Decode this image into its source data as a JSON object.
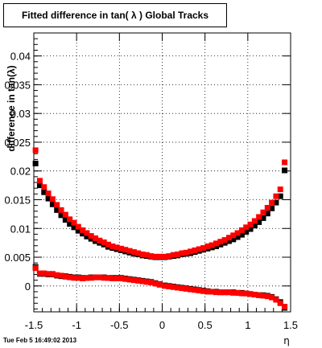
{
  "title": "Fitted difference in tan( λ )  Global Tracks",
  "timestamp": "Tue Feb  5 16:49:02 2013",
  "chart_data": {
    "type": "scatter",
    "title": "Fitted difference in tan( λ )  Global Tracks",
    "xlabel": "η",
    "ylabel": "difference in tan(λ)",
    "xlim": [
      -1.5,
      1.5
    ],
    "ylim": [
      -0.0045,
      0.044
    ],
    "grid": true,
    "x_ticks": [
      "-1.5",
      "-1",
      "-0.5",
      "0",
      "0.5",
      "1",
      "1.5"
    ],
    "y_ticks": [
      "0",
      "0.005",
      "0.01",
      "0.015",
      "0.02",
      "0.025",
      "0.03",
      "0.035",
      "0.04"
    ],
    "series_colors": [
      "#000000",
      "#ff0000"
    ],
    "series": [
      {
        "color": "#000000",
        "points": [
          [
            -1.48,
            0.0213
          ],
          [
            -1.43,
            0.0175
          ],
          [
            -1.38,
            0.0163
          ],
          [
            -1.33,
            0.0152
          ],
          [
            -1.28,
            0.0142
          ],
          [
            -1.23,
            0.0132
          ],
          [
            -1.18,
            0.0123
          ],
          [
            -1.13,
            0.0115
          ],
          [
            -1.08,
            0.0108
          ],
          [
            -1.03,
            0.0102
          ],
          [
            -0.98,
            0.0096
          ],
          [
            -0.93,
            0.0091
          ],
          [
            -0.88,
            0.0086
          ],
          [
            -0.83,
            0.0082
          ],
          [
            -0.78,
            0.0078
          ],
          [
            -0.73,
            0.0075
          ],
          [
            -0.68,
            0.0072
          ],
          [
            -0.63,
            0.0068
          ],
          [
            -0.58,
            0.0066
          ],
          [
            -0.53,
            0.0064
          ],
          [
            -0.48,
            0.0062
          ],
          [
            -0.43,
            0.006
          ],
          [
            -0.38,
            0.0058
          ],
          [
            -0.33,
            0.0056
          ],
          [
            -0.28,
            0.0055
          ],
          [
            -0.23,
            0.0053
          ],
          [
            -0.18,
            0.0052
          ],
          [
            -0.13,
            0.0051
          ],
          [
            -0.08,
            0.005
          ],
          [
            -0.03,
            0.005
          ],
          [
            0.03,
            0.005
          ],
          [
            0.08,
            0.0051
          ],
          [
            0.13,
            0.0052
          ],
          [
            0.18,
            0.0053
          ],
          [
            0.23,
            0.0055
          ],
          [
            0.28,
            0.0056
          ],
          [
            0.33,
            0.0057
          ],
          [
            0.38,
            0.0059
          ],
          [
            0.43,
            0.0061
          ],
          [
            0.48,
            0.0063
          ],
          [
            0.53,
            0.0065
          ],
          [
            0.58,
            0.0067
          ],
          [
            0.63,
            0.0069
          ],
          [
            0.68,
            0.0072
          ],
          [
            0.73,
            0.0075
          ],
          [
            0.78,
            0.0078
          ],
          [
            0.83,
            0.0081
          ],
          [
            0.88,
            0.0085
          ],
          [
            0.93,
            0.0089
          ],
          [
            0.98,
            0.0094
          ],
          [
            1.03,
            0.0099
          ],
          [
            1.08,
            0.0105
          ],
          [
            1.13,
            0.0111
          ],
          [
            1.18,
            0.0118
          ],
          [
            1.23,
            0.0126
          ],
          [
            1.28,
            0.0135
          ],
          [
            1.33,
            0.0145
          ],
          [
            1.38,
            0.0156
          ],
          [
            1.43,
            0.0201
          ],
          [
            -1.48,
            0.0033
          ],
          [
            -1.43,
            0.0021
          ],
          [
            -1.38,
            0.0021
          ],
          [
            -1.33,
            0.002
          ],
          [
            -1.28,
            0.002
          ],
          [
            -1.23,
            0.0018
          ],
          [
            -1.18,
            0.0017
          ],
          [
            -1.13,
            0.0017
          ],
          [
            -1.08,
            0.0016
          ],
          [
            -1.03,
            0.0015
          ],
          [
            -0.98,
            0.0015
          ],
          [
            -0.93,
            0.0014
          ],
          [
            -0.88,
            0.0014
          ],
          [
            -0.83,
            0.0015
          ],
          [
            -0.78,
            0.0015
          ],
          [
            -0.73,
            0.0015
          ],
          [
            -0.68,
            0.0015
          ],
          [
            -0.63,
            0.0014
          ],
          [
            -0.58,
            0.0014
          ],
          [
            -0.53,
            0.0014
          ],
          [
            -0.48,
            0.0014
          ],
          [
            -0.43,
            0.0013
          ],
          [
            -0.38,
            0.0012
          ],
          [
            -0.33,
            0.0011
          ],
          [
            -0.28,
            0.001
          ],
          [
            -0.23,
            0.0009
          ],
          [
            -0.18,
            0.0008
          ],
          [
            -0.13,
            0.0007
          ],
          [
            -0.08,
            0.0005
          ],
          [
            -0.03,
            0.0003
          ],
          [
            0.03,
            0.0001
          ],
          [
            0.08,
            0.0
          ],
          [
            0.13,
            -0.0001
          ],
          [
            0.18,
            -0.0002
          ],
          [
            0.23,
            -0.0003
          ],
          [
            0.28,
            -0.0004
          ],
          [
            0.33,
            -0.0005
          ],
          [
            0.38,
            -0.0006
          ],
          [
            0.43,
            -0.0007
          ],
          [
            0.48,
            -0.0008
          ],
          [
            0.53,
            -0.0009
          ],
          [
            0.58,
            -0.001
          ],
          [
            0.63,
            -0.001
          ],
          [
            0.68,
            -0.0011
          ],
          [
            0.73,
            -0.0011
          ],
          [
            0.78,
            -0.0011
          ],
          [
            0.83,
            -0.0011
          ],
          [
            0.88,
            -0.0012
          ],
          [
            0.93,
            -0.0012
          ],
          [
            0.98,
            -0.0013
          ],
          [
            1.03,
            -0.0014
          ],
          [
            1.08,
            -0.0015
          ],
          [
            1.13,
            -0.0016
          ],
          [
            1.18,
            -0.0016
          ],
          [
            1.23,
            -0.0017
          ],
          [
            1.28,
            -0.0019
          ],
          [
            1.33,
            -0.0023
          ],
          [
            1.38,
            -0.0028
          ],
          [
            1.43,
            -0.0038
          ]
        ]
      },
      {
        "color": "#ff0000",
        "points": [
          [
            -1.48,
            0.0236
          ],
          [
            -1.43,
            0.0183
          ],
          [
            -1.38,
            0.0172
          ],
          [
            -1.33,
            0.0161
          ],
          [
            -1.28,
            0.0151
          ],
          [
            -1.23,
            0.0141
          ],
          [
            -1.18,
            0.0132
          ],
          [
            -1.13,
            0.0124
          ],
          [
            -1.08,
            0.0116
          ],
          [
            -1.03,
            0.011
          ],
          [
            -0.98,
            0.0103
          ],
          [
            -0.93,
            0.0097
          ],
          [
            -0.88,
            0.0092
          ],
          [
            -0.83,
            0.0087
          ],
          [
            -0.78,
            0.0083
          ],
          [
            -0.73,
            0.0079
          ],
          [
            -0.68,
            0.0076
          ],
          [
            -0.63,
            0.0072
          ],
          [
            -0.58,
            0.0069
          ],
          [
            -0.53,
            0.0067
          ],
          [
            -0.48,
            0.0065
          ],
          [
            -0.43,
            0.0063
          ],
          [
            -0.38,
            0.0061
          ],
          [
            -0.33,
            0.0059
          ],
          [
            -0.28,
            0.0057
          ],
          [
            -0.23,
            0.0055
          ],
          [
            -0.18,
            0.0054
          ],
          [
            -0.13,
            0.0052
          ],
          [
            -0.08,
            0.0051
          ],
          [
            -0.03,
            0.0051
          ],
          [
            0.03,
            0.0051
          ],
          [
            0.08,
            0.0052
          ],
          [
            0.13,
            0.0054
          ],
          [
            0.18,
            0.0055
          ],
          [
            0.23,
            0.0057
          ],
          [
            0.28,
            0.0058
          ],
          [
            0.33,
            0.006
          ],
          [
            0.38,
            0.0062
          ],
          [
            0.43,
            0.0064
          ],
          [
            0.48,
            0.0066
          ],
          [
            0.53,
            0.0069
          ],
          [
            0.58,
            0.0071
          ],
          [
            0.63,
            0.0074
          ],
          [
            0.68,
            0.0077
          ],
          [
            0.73,
            0.008
          ],
          [
            0.78,
            0.0084
          ],
          [
            0.83,
            0.0088
          ],
          [
            0.88,
            0.0092
          ],
          [
            0.93,
            0.0097
          ],
          [
            0.98,
            0.0102
          ],
          [
            1.03,
            0.0107
          ],
          [
            1.08,
            0.0113
          ],
          [
            1.13,
            0.012
          ],
          [
            1.18,
            0.0128
          ],
          [
            1.23,
            0.0136
          ],
          [
            1.28,
            0.0145
          ],
          [
            1.33,
            0.0156
          ],
          [
            1.38,
            0.0168
          ],
          [
            1.43,
            0.0215
          ],
          [
            -1.48,
            0.0031
          ],
          [
            -1.43,
            0.0022
          ],
          [
            -1.38,
            0.0022
          ],
          [
            -1.33,
            0.0021
          ],
          [
            -1.28,
            0.0021
          ],
          [
            -1.23,
            0.0019
          ],
          [
            -1.18,
            0.0018
          ],
          [
            -1.13,
            0.0016
          ],
          [
            -1.08,
            0.0015
          ],
          [
            -1.03,
            0.0014
          ],
          [
            -0.98,
            0.0014
          ],
          [
            -0.93,
            0.0013
          ],
          [
            -0.88,
            0.0014
          ],
          [
            -0.83,
            0.0014
          ],
          [
            -0.78,
            0.0015
          ],
          [
            -0.73,
            0.0015
          ],
          [
            -0.68,
            0.0014
          ],
          [
            -0.63,
            0.0014
          ],
          [
            -0.58,
            0.0013
          ],
          [
            -0.53,
            0.0013
          ],
          [
            -0.48,
            0.0013
          ],
          [
            -0.43,
            0.0012
          ],
          [
            -0.38,
            0.0011
          ],
          [
            -0.33,
            0.001
          ],
          [
            -0.28,
            0.0009
          ],
          [
            -0.23,
            0.0008
          ],
          [
            -0.18,
            0.0007
          ],
          [
            -0.13,
            0.0006
          ],
          [
            -0.08,
            0.0004
          ],
          [
            -0.03,
            0.0002
          ],
          [
            0.03,
            0.0
          ],
          [
            0.08,
            -0.0001
          ],
          [
            0.13,
            -0.0002
          ],
          [
            0.18,
            -0.0003
          ],
          [
            0.23,
            -0.0004
          ],
          [
            0.28,
            -0.0005
          ],
          [
            0.33,
            -0.0006
          ],
          [
            0.38,
            -0.0007
          ],
          [
            0.43,
            -0.0008
          ],
          [
            0.48,
            -0.0009
          ],
          [
            0.53,
            -0.001
          ],
          [
            0.58,
            -0.001
          ],
          [
            0.63,
            -0.0011
          ],
          [
            0.68,
            -0.0011
          ],
          [
            0.73,
            -0.0011
          ],
          [
            0.78,
            -0.0011
          ],
          [
            0.83,
            -0.0012
          ],
          [
            0.88,
            -0.0012
          ],
          [
            0.93,
            -0.0013
          ],
          [
            0.98,
            -0.0013
          ],
          [
            1.03,
            -0.0014
          ],
          [
            1.08,
            -0.0015
          ],
          [
            1.13,
            -0.0016
          ],
          [
            1.18,
            -0.0017
          ],
          [
            1.23,
            -0.0018
          ],
          [
            1.28,
            -0.002
          ],
          [
            1.33,
            -0.0024
          ],
          [
            1.38,
            -0.003
          ],
          [
            1.43,
            -0.0036
          ]
        ]
      }
    ]
  }
}
